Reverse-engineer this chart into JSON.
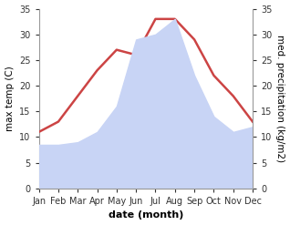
{
  "months": [
    "Jan",
    "Feb",
    "Mar",
    "Apr",
    "May",
    "Jun",
    "Jul",
    "Aug",
    "Sep",
    "Oct",
    "Nov",
    "Dec"
  ],
  "temp": [
    11,
    13,
    18,
    23,
    27,
    26,
    33,
    33,
    29,
    22,
    18,
    13
  ],
  "precip": [
    8.5,
    8.5,
    9,
    11,
    16,
    29,
    30,
    33,
    22,
    14,
    11,
    12
  ],
  "temp_color": "#cc4444",
  "precip_fill_color": "#c8d4f5",
  "ylabel_left": "max temp (C)",
  "ylabel_right": "med. precipitation (kg/m2)",
  "xlabel": "date (month)",
  "temp_ylim": [
    0,
    35
  ],
  "precip_ylim": [
    0,
    35
  ],
  "bg_color": "#ffffff",
  "line_width": 1.8,
  "font_size_labels": 7.5,
  "font_size_xlabel": 8,
  "font_size_ticks": 7
}
